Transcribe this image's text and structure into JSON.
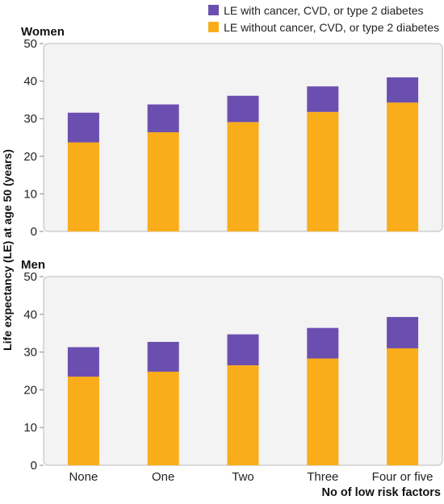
{
  "legend": {
    "with_label": "LE with cancer, CVD, or type 2 diabetes",
    "without_label": "LE without cancer, CVD, or type 2 diabetes"
  },
  "colors": {
    "with": "#6b4fb0",
    "without": "#f9ad1b",
    "panel_bg": "#f3f3f3",
    "axis": "#bbbbbb"
  },
  "ylabel": "Life expectancy (LE) at age 50 (years)",
  "xlabel": "No of low risk factors",
  "chart_data": [
    {
      "type": "bar",
      "stacked": true,
      "title": "Women",
      "categories": [
        "None",
        "One",
        "Two",
        "Three",
        "Four or five"
      ],
      "series": [
        {
          "name": "LE without cancer, CVD, or type 2 diabetes",
          "values": [
            23.7,
            26.4,
            29.1,
            31.8,
            34.3
          ]
        },
        {
          "name": "LE with cancer, CVD, or type 2 diabetes",
          "values": [
            7.9,
            7.4,
            7.0,
            6.8,
            6.7
          ]
        }
      ],
      "totals": [
        31.6,
        33.8,
        36.1,
        38.6,
        41.0
      ],
      "ylim": [
        0,
        50
      ],
      "yticks": [
        0,
        10,
        20,
        30,
        40,
        50
      ]
    },
    {
      "type": "bar",
      "stacked": true,
      "title": "Men",
      "categories": [
        "None",
        "One",
        "Two",
        "Three",
        "Four or five"
      ],
      "series": [
        {
          "name": "LE without cancer, CVD, or type 2 diabetes",
          "values": [
            23.5,
            24.8,
            26.5,
            28.3,
            31.0
          ]
        },
        {
          "name": "LE with cancer, CVD, or type 2 diabetes",
          "values": [
            7.8,
            7.9,
            8.2,
            8.1,
            8.3
          ]
        }
      ],
      "totals": [
        31.3,
        32.7,
        34.7,
        36.4,
        39.3
      ],
      "ylim": [
        0,
        50
      ],
      "yticks": [
        0,
        10,
        20,
        30,
        40,
        50
      ]
    }
  ]
}
